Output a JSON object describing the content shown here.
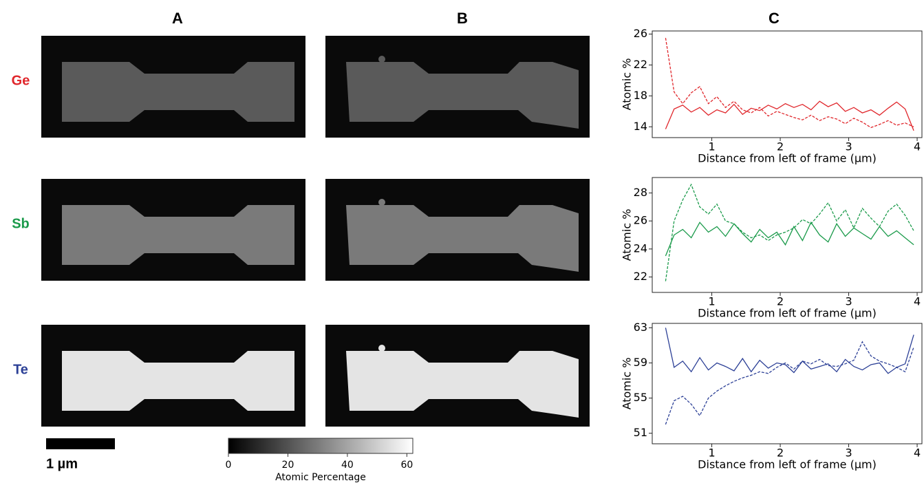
{
  "panels": [
    "A",
    "B",
    "C"
  ],
  "rows": [
    {
      "label": "Ge",
      "color": "#e0262b"
    },
    {
      "label": "Sb",
      "color": "#1a9a4a"
    },
    {
      "label": "Te",
      "color": "#2b3f96"
    }
  ],
  "scale_bar": "1 µm",
  "colorbar": {
    "label": "Atomic Percentage",
    "lim": [
      0,
      62
    ],
    "ticks": [
      0,
      20,
      40,
      60
    ]
  },
  "chart_data": [
    {
      "type": "line",
      "xlabel": "Distance from left of frame (µm)",
      "ylabel": "Atomic %",
      "x": [
        0.325,
        0.45,
        0.575,
        0.7,
        0.825,
        0.95,
        1.075,
        1.2,
        1.325,
        1.45,
        1.575,
        1.7,
        1.825,
        1.95,
        2.075,
        2.2,
        2.325,
        2.45,
        2.575,
        2.7,
        2.825,
        2.95,
        3.075,
        3.2,
        3.325,
        3.45,
        3.575,
        3.7,
        3.825,
        3.95
      ],
      "series": [
        {
          "color": "#e0262b",
          "linestyle": "solid",
          "values": [
            13.7,
            16.3,
            16.8,
            15.9,
            16.5,
            15.5,
            16.2,
            15.8,
            16.9,
            15.6,
            16.4,
            16.1,
            16.8,
            16.3,
            17.0,
            16.5,
            16.9,
            16.2,
            17.3,
            16.6,
            17.1,
            16.0,
            16.5,
            15.8,
            16.2,
            15.5,
            16.4,
            17.2,
            16.3,
            13.5
          ]
        },
        {
          "color": "#e0262b",
          "linestyle": "dashed",
          "values": [
            25.5,
            18.5,
            17.0,
            18.4,
            19.2,
            17.0,
            17.9,
            16.5,
            17.3,
            16.2,
            15.8,
            16.5,
            15.4,
            16.0,
            15.6,
            15.2,
            14.9,
            15.5,
            14.8,
            15.3,
            15.0,
            14.4,
            15.1,
            14.6,
            13.9,
            14.3,
            14.8,
            14.2,
            14.5,
            14.0
          ]
        }
      ],
      "xlim": [
        0.13,
        4.07
      ],
      "ylim": [
        12.6,
        26.4
      ],
      "xticks": [
        1,
        2,
        3,
        4
      ],
      "yticks": [
        14,
        18,
        22,
        26
      ]
    },
    {
      "type": "line",
      "xlabel": "Distance from left of frame (µm)",
      "ylabel": "Atomic %",
      "x": [
        0.325,
        0.45,
        0.575,
        0.7,
        0.825,
        0.95,
        1.075,
        1.2,
        1.325,
        1.45,
        1.575,
        1.7,
        1.825,
        1.95,
        2.075,
        2.2,
        2.325,
        2.45,
        2.575,
        2.7,
        2.825,
        2.95,
        3.075,
        3.2,
        3.325,
        3.45,
        3.575,
        3.7,
        3.825,
        3.95
      ],
      "series": [
        {
          "color": "#1a9a4a",
          "linestyle": "solid",
          "values": [
            23.5,
            25.0,
            25.4,
            24.8,
            25.9,
            25.2,
            25.6,
            24.9,
            25.8,
            25.1,
            24.5,
            25.4,
            24.8,
            25.2,
            24.3,
            25.6,
            24.6,
            25.9,
            25.0,
            24.5,
            25.8,
            24.9,
            25.5,
            25.1,
            24.7,
            25.6,
            24.9,
            25.3,
            24.8,
            24.3
          ]
        },
        {
          "color": "#1a9a4a",
          "linestyle": "dashed",
          "values": [
            21.7,
            26.0,
            27.5,
            28.6,
            27.0,
            26.5,
            27.2,
            26.0,
            25.8,
            25.2,
            24.8,
            25.0,
            24.6,
            25.0,
            25.2,
            25.5,
            26.1,
            25.8,
            26.5,
            27.3,
            26.0,
            26.8,
            25.5,
            26.9,
            26.2,
            25.6,
            26.7,
            27.2,
            26.4,
            25.3
          ]
        }
      ],
      "xlim": [
        0.13,
        4.07
      ],
      "ylim": [
        20.9,
        29.1
      ],
      "xticks": [
        1,
        2,
        3,
        4
      ],
      "yticks": [
        22,
        24,
        26,
        28
      ]
    },
    {
      "type": "line",
      "xlabel": "Distance from left of frame (µm)",
      "ylabel": "Atomic %",
      "x": [
        0.325,
        0.45,
        0.575,
        0.7,
        0.825,
        0.95,
        1.075,
        1.2,
        1.325,
        1.45,
        1.575,
        1.7,
        1.825,
        1.95,
        2.075,
        2.2,
        2.325,
        2.45,
        2.575,
        2.7,
        2.825,
        2.95,
        3.075,
        3.2,
        3.325,
        3.45,
        3.575,
        3.7,
        3.825,
        3.95
      ],
      "series": [
        {
          "color": "#2b3f96",
          "linestyle": "solid",
          "values": [
            63.0,
            58.5,
            59.2,
            58.0,
            59.6,
            58.2,
            59.0,
            58.6,
            58.1,
            59.5,
            58.0,
            59.3,
            58.4,
            59.0,
            58.8,
            57.9,
            59.2,
            58.3,
            58.6,
            58.9,
            58.0,
            59.4,
            58.6,
            58.2,
            58.8,
            59.0,
            57.8,
            58.5,
            58.9,
            62.2
          ]
        },
        {
          "color": "#2b3f96",
          "linestyle": "dashed",
          "values": [
            52.0,
            54.7,
            55.2,
            54.3,
            53.0,
            55.0,
            55.8,
            56.4,
            56.9,
            57.3,
            57.6,
            58.0,
            57.8,
            58.5,
            59.0,
            58.3,
            59.2,
            58.9,
            59.4,
            58.7,
            58.6,
            58.9,
            59.3,
            61.4,
            59.8,
            59.2,
            58.9,
            58.5,
            58.0,
            60.8
          ]
        }
      ],
      "xlim": [
        0.13,
        4.07
      ],
      "ylim": [
        49.8,
        63.5
      ],
      "xticks": [
        1,
        2,
        3,
        4
      ],
      "yticks": [
        51,
        55,
        59,
        63
      ]
    }
  ]
}
